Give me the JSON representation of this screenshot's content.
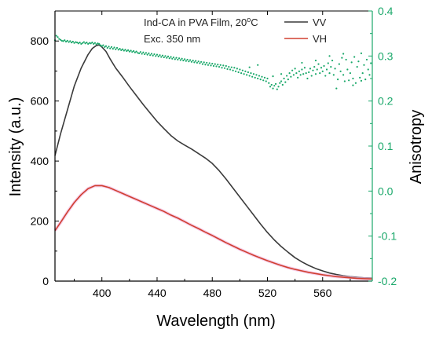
{
  "chart_data": {
    "type": "line",
    "xlabel": "Wavelength (nm)",
    "ylabel": "Intensity (a.u.)",
    "ylabel_right": "Anisotropy",
    "xlim": [
      366,
      596
    ],
    "ylim": [
      0,
      900
    ],
    "ylim_right": [
      -0.2,
      0.4
    ],
    "x_ticks": [
      400,
      440,
      480,
      520,
      560
    ],
    "y_ticks": [
      0,
      200,
      400,
      600,
      800
    ],
    "y_ticks_right": [
      -0.2,
      -0.1,
      0.0,
      0.1,
      0.2,
      0.3,
      0.4
    ],
    "y_tick_labels_right": [
      "-0.2",
      "-0.1",
      "0.0",
      "0.1",
      "0.2",
      "0.3",
      "0.4"
    ],
    "grid": false,
    "annotation": {
      "line1_prefix": "Ind-CA in PVA Film, 20",
      "line1_sup": "o",
      "line1_suffix": "C",
      "line2": "Exc. 350 nm"
    },
    "series": [
      {
        "name": "VV",
        "axis": "left",
        "style": "line",
        "color": "#3a3a3a",
        "x": [
          366,
          370,
          375,
          380,
          385,
          390,
          393,
          396,
          398,
          400,
          403,
          406,
          410,
          415,
          420,
          425,
          430,
          435,
          440,
          445,
          450,
          455,
          460,
          465,
          470,
          475,
          480,
          485,
          490,
          495,
          500,
          505,
          510,
          515,
          520,
          525,
          530,
          535,
          540,
          545,
          550,
          555,
          560,
          565,
          570,
          575,
          580,
          585,
          590,
          596
        ],
        "y": [
          418,
          490,
          570,
          650,
          710,
          755,
          775,
          785,
          787,
          780,
          765,
          740,
          710,
          680,
          648,
          618,
          588,
          560,
          532,
          508,
          485,
          467,
          453,
          440,
          425,
          410,
          392,
          368,
          340,
          310,
          280,
          250,
          220,
          190,
          162,
          137,
          115,
          96,
          78,
          64,
          52,
          42,
          34,
          27,
          22,
          18,
          15,
          13,
          11,
          10
        ]
      },
      {
        "name": "VH",
        "axis": "left",
        "style": "line",
        "color": "#d04030",
        "x": [
          366,
          370,
          375,
          380,
          385,
          390,
          395,
          400,
          405,
          410,
          415,
          420,
          425,
          430,
          435,
          440,
          445,
          450,
          455,
          460,
          465,
          470,
          475,
          480,
          485,
          490,
          495,
          500,
          505,
          510,
          515,
          520,
          525,
          530,
          535,
          540,
          545,
          550,
          555,
          560,
          565,
          570,
          575,
          580,
          585,
          590,
          596
        ],
        "y": [
          168,
          195,
          230,
          262,
          288,
          308,
          318,
          318,
          312,
          302,
          292,
          282,
          272,
          262,
          252,
          242,
          232,
          220,
          210,
          198,
          186,
          175,
          163,
          152,
          140,
          128,
          117,
          106,
          96,
          86,
          77,
          68,
          60,
          52,
          45,
          39,
          34,
          29,
          25,
          21,
          18,
          15,
          13,
          11,
          9,
          8,
          7
        ]
      },
      {
        "name": "",
        "axis": "right",
        "style": "scatter",
        "color": "#1aa86a",
        "points": [
          [
            366,
            0.335
          ],
          [
            367,
            0.345
          ],
          [
            368,
            0.342
          ],
          [
            369,
            0.338
          ],
          [
            370,
            0.336
          ],
          [
            371,
            0.334
          ],
          [
            372,
            0.333
          ],
          [
            373,
            0.335
          ],
          [
            374,
            0.332
          ],
          [
            375,
            0.334
          ],
          [
            376,
            0.331
          ],
          [
            377,
            0.333
          ],
          [
            378,
            0.33
          ],
          [
            379,
            0.332
          ],
          [
            380,
            0.329
          ],
          [
            381,
            0.331
          ],
          [
            382,
            0.33
          ],
          [
            383,
            0.328
          ],
          [
            384,
            0.33
          ],
          [
            385,
            0.327
          ],
          [
            386,
            0.329
          ],
          [
            387,
            0.331
          ],
          [
            388,
            0.328
          ],
          [
            389,
            0.33
          ],
          [
            390,
            0.327
          ],
          [
            391,
            0.329
          ],
          [
            392,
            0.328
          ],
          [
            393,
            0.33
          ],
          [
            394,
            0.327
          ],
          [
            395,
            0.329
          ],
          [
            396,
            0.326
          ],
          [
            397,
            0.328
          ],
          [
            398,
            0.327
          ],
          [
            399,
            0.324
          ],
          [
            400,
            0.322
          ],
          [
            401,
            0.324
          ],
          [
            402,
            0.32
          ],
          [
            403,
            0.322
          ],
          [
            404,
            0.318
          ],
          [
            405,
            0.321
          ],
          [
            406,
            0.317
          ],
          [
            407,
            0.32
          ],
          [
            408,
            0.316
          ],
          [
            409,
            0.319
          ],
          [
            410,
            0.315
          ],
          [
            411,
            0.318
          ],
          [
            412,
            0.314
          ],
          [
            413,
            0.316
          ],
          [
            414,
            0.313
          ],
          [
            415,
            0.315
          ],
          [
            416,
            0.312
          ],
          [
            417,
            0.314
          ],
          [
            418,
            0.311
          ],
          [
            419,
            0.313
          ],
          [
            420,
            0.31
          ],
          [
            421,
            0.312
          ],
          [
            422,
            0.309
          ],
          [
            423,
            0.311
          ],
          [
            424,
            0.308
          ],
          [
            425,
            0.31
          ],
          [
            426,
            0.307
          ],
          [
            427,
            0.306
          ],
          [
            428,
            0.309
          ],
          [
            429,
            0.305
          ],
          [
            430,
            0.308
          ],
          [
            431,
            0.304
          ],
          [
            432,
            0.307
          ],
          [
            433,
            0.303
          ],
          [
            434,
            0.306
          ],
          [
            435,
            0.302
          ],
          [
            436,
            0.305
          ],
          [
            437,
            0.301
          ],
          [
            438,
            0.304
          ],
          [
            439,
            0.3
          ],
          [
            440,
            0.303
          ],
          [
            441,
            0.299
          ],
          [
            442,
            0.302
          ],
          [
            443,
            0.298
          ],
          [
            444,
            0.301
          ],
          [
            445,
            0.297
          ],
          [
            446,
            0.3
          ],
          [
            447,
            0.296
          ],
          [
            448,
            0.299
          ],
          [
            449,
            0.295
          ],
          [
            450,
            0.298
          ],
          [
            451,
            0.294
          ],
          [
            452,
            0.297
          ],
          [
            453,
            0.293
          ],
          [
            454,
            0.296
          ],
          [
            455,
            0.292
          ],
          [
            456,
            0.295
          ],
          [
            457,
            0.291
          ],
          [
            458,
            0.294
          ],
          [
            459,
            0.29
          ],
          [
            460,
            0.293
          ],
          [
            461,
            0.289
          ],
          [
            462,
            0.292
          ],
          [
            463,
            0.288
          ],
          [
            464,
            0.291
          ],
          [
            465,
            0.287
          ],
          [
            466,
            0.29
          ],
          [
            467,
            0.286
          ],
          [
            468,
            0.289
          ],
          [
            469,
            0.285
          ],
          [
            470,
            0.288
          ],
          [
            471,
            0.284
          ],
          [
            472,
            0.287
          ],
          [
            473,
            0.282
          ],
          [
            474,
            0.286
          ],
          [
            475,
            0.281
          ],
          [
            476,
            0.285
          ],
          [
            477,
            0.28
          ],
          [
            478,
            0.284
          ],
          [
            479,
            0.279
          ],
          [
            480,
            0.283
          ],
          [
            481,
            0.278
          ],
          [
            482,
            0.282
          ],
          [
            483,
            0.277
          ],
          [
            484,
            0.281
          ],
          [
            485,
            0.276
          ],
          [
            486,
            0.28
          ],
          [
            487,
            0.274
          ],
          [
            488,
            0.279
          ],
          [
            489,
            0.273
          ],
          [
            490,
            0.278
          ],
          [
            491,
            0.271
          ],
          [
            492,
            0.276
          ],
          [
            493,
            0.27
          ],
          [
            494,
            0.275
          ],
          [
            495,
            0.268
          ],
          [
            496,
            0.274
          ],
          [
            497,
            0.266
          ],
          [
            498,
            0.272
          ],
          [
            499,
            0.264
          ],
          [
            500,
            0.27
          ],
          [
            501,
            0.262
          ],
          [
            502,
            0.268
          ],
          [
            503,
            0.26
          ],
          [
            504,
            0.266
          ],
          [
            505,
            0.258
          ],
          [
            506,
            0.264
          ],
          [
            507,
            0.256
          ],
          [
            508,
            0.262
          ],
          [
            509,
            0.254
          ],
          [
            510,
            0.26
          ],
          [
            511,
            0.252
          ],
          [
            512,
            0.258
          ],
          [
            513,
            0.25
          ],
          [
            514,
            0.256
          ],
          [
            515,
            0.248
          ],
          [
            516,
            0.254
          ],
          [
            517,
            0.246
          ],
          [
            518,
            0.252
          ],
          [
            519,
            0.244
          ],
          [
            520,
            0.25
          ],
          [
            521,
            0.24
          ],
          [
            522,
            0.232
          ],
          [
            523,
            0.236
          ],
          [
            524,
            0.228
          ],
          [
            525,
            0.234
          ],
          [
            526,
            0.238
          ],
          [
            527,
            0.226
          ],
          [
            528,
            0.232
          ],
          [
            529,
            0.24
          ],
          [
            530,
            0.244
          ],
          [
            531,
            0.236
          ],
          [
            532,
            0.25
          ],
          [
            533,
            0.242
          ],
          [
            534,
            0.256
          ],
          [
            535,
            0.248
          ],
          [
            536,
            0.262
          ],
          [
            537,
            0.254
          ],
          [
            538,
            0.268
          ],
          [
            539,
            0.258
          ],
          [
            540,
            0.272
          ],
          [
            541,
            0.262
          ],
          [
            542,
            0.252
          ],
          [
            543,
            0.266
          ],
          [
            544,
            0.258
          ],
          [
            545,
            0.27
          ],
          [
            546,
            0.26
          ],
          [
            547,
            0.274
          ],
          [
            548,
            0.262
          ],
          [
            549,
            0.25
          ],
          [
            550,
            0.264
          ],
          [
            551,
            0.272
          ],
          [
            552,
            0.256
          ],
          [
            553,
            0.268
          ],
          [
            554,
            0.276
          ],
          [
            555,
            0.26
          ],
          [
            556,
            0.27
          ],
          [
            557,
            0.282
          ],
          [
            558,
            0.262
          ],
          [
            559,
            0.274
          ],
          [
            560,
            0.266
          ],
          [
            561,
            0.278
          ],
          [
            562,
            0.256
          ],
          [
            563,
            0.27
          ],
          [
            564,
            0.284
          ],
          [
            565,
            0.262
          ],
          [
            566,
            0.276
          ],
          [
            567,
            0.29
          ],
          [
            568,
            0.258
          ],
          [
            569,
            0.272
          ],
          [
            570,
            0.228
          ],
          [
            571,
            0.248
          ],
          [
            572,
            0.282
          ],
          [
            573,
            0.266
          ],
          [
            574,
            0.296
          ],
          [
            575,
            0.258
          ],
          [
            576,
            0.244
          ],
          [
            577,
            0.292
          ],
          [
            578,
            0.27
          ],
          [
            579,
            0.246
          ],
          [
            580,
            0.262
          ],
          [
            581,
            0.286
          ],
          [
            582,
            0.25
          ],
          [
            583,
            0.298
          ],
          [
            584,
            0.24
          ],
          [
            585,
            0.276
          ],
          [
            586,
            0.288
          ],
          [
            587,
            0.252
          ],
          [
            588,
            0.306
          ],
          [
            589,
            0.262
          ],
          [
            590,
            0.28
          ],
          [
            591,
            0.248
          ],
          [
            592,
            0.292
          ],
          [
            593,
            0.27
          ],
          [
            594,
            0.258
          ],
          [
            595,
            0.284
          ],
          [
            582,
            0.235
          ],
          [
            555,
            0.29
          ],
          [
            545,
            0.285
          ],
          [
            530,
            0.26
          ],
          [
            507,
            0.275
          ],
          [
            513,
            0.28
          ],
          [
            565,
            0.3
          ],
          [
            575,
            0.305
          ],
          [
            588,
            0.245
          ],
          [
            524,
            0.255
          ]
        ]
      }
    ]
  }
}
